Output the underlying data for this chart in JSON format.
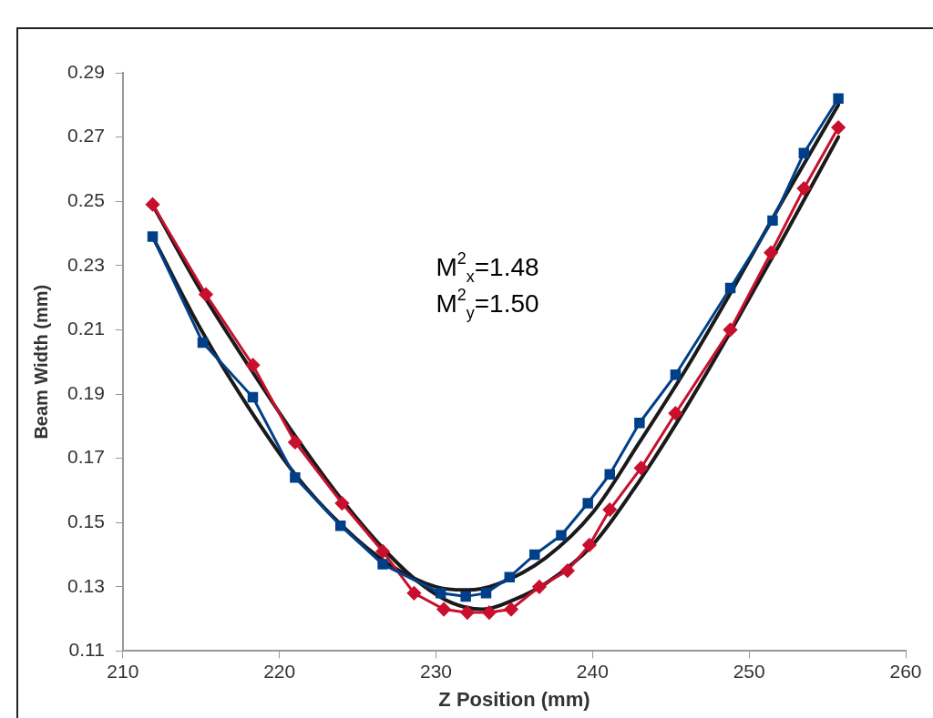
{
  "chart_data": {
    "type": "line",
    "xlabel": "Z Position (mm)",
    "ylabel": "Beam Width (mm)",
    "xlim": [
      210,
      260
    ],
    "xticks": [
      210,
      220,
      230,
      240,
      250,
      260
    ],
    "ylim": [
      0.11,
      0.29
    ],
    "yticks": [
      0.11,
      0.13,
      0.15,
      0.17,
      0.19,
      0.21,
      0.23,
      0.25,
      0.27,
      0.29
    ],
    "grid": false,
    "legend": false,
    "annotations": [
      "M$^{2}$$_{x}$=1.48",
      "M$^{2}$$_{y}$=1.50"
    ],
    "series": [
      {
        "color": "#003f8a",
        "marker": "square",
        "x": [
          211.9,
          215.1,
          218.3,
          221.0,
          223.9,
          226.6,
          230.3,
          231.9,
          233.2,
          234.7,
          236.3,
          238.0,
          239.7,
          241.1,
          243.0,
          245.3,
          248.8,
          251.5,
          253.5,
          255.7
        ],
        "values": [
          0.239,
          0.206,
          0.189,
          0.164,
          0.149,
          0.137,
          0.128,
          0.127,
          0.128,
          0.133,
          0.14,
          0.146,
          0.156,
          0.165,
          0.181,
          0.196,
          0.223,
          0.244,
          0.265,
          0.282
        ]
      },
      {
        "color": "#c8102e",
        "marker": "diamond",
        "x": [
          211.9,
          215.3,
          218.3,
          221.0,
          224.0,
          226.6,
          228.6,
          230.5,
          232.0,
          233.4,
          234.8,
          236.6,
          238.4,
          239.8,
          241.1,
          243.1,
          245.3,
          248.8,
          251.4,
          253.5,
          255.7
        ],
        "values": [
          0.249,
          0.221,
          0.199,
          0.175,
          0.156,
          0.141,
          0.128,
          0.123,
          0.122,
          0.122,
          0.123,
          0.13,
          0.135,
          0.143,
          0.154,
          0.167,
          0.184,
          0.21,
          0.234,
          0.254,
          0.273
        ]
      },
      {
        "color": "#1a1a1a",
        "marker": "none",
        "x": [
          212,
          215,
          218,
          221,
          224,
          227,
          230,
          232,
          234,
          237,
          240,
          243,
          246,
          249,
          252,
          255.7
        ],
        "values": [
          0.238,
          0.21,
          0.186,
          0.165,
          0.149,
          0.137,
          0.13,
          0.129,
          0.131,
          0.139,
          0.153,
          0.175,
          0.198,
          0.223,
          0.249,
          0.28
        ]
      },
      {
        "color": "#1a1a1a",
        "marker": "none",
        "x": [
          212,
          215,
          218,
          221,
          224,
          227,
          229,
          231,
          233,
          235,
          237,
          240,
          243,
          246,
          249,
          252,
          255.7
        ],
        "values": [
          0.248,
          0.222,
          0.199,
          0.177,
          0.157,
          0.14,
          0.131,
          0.125,
          0.123,
          0.126,
          0.131,
          0.143,
          0.163,
          0.186,
          0.211,
          0.237,
          0.27
        ]
      }
    ]
  }
}
